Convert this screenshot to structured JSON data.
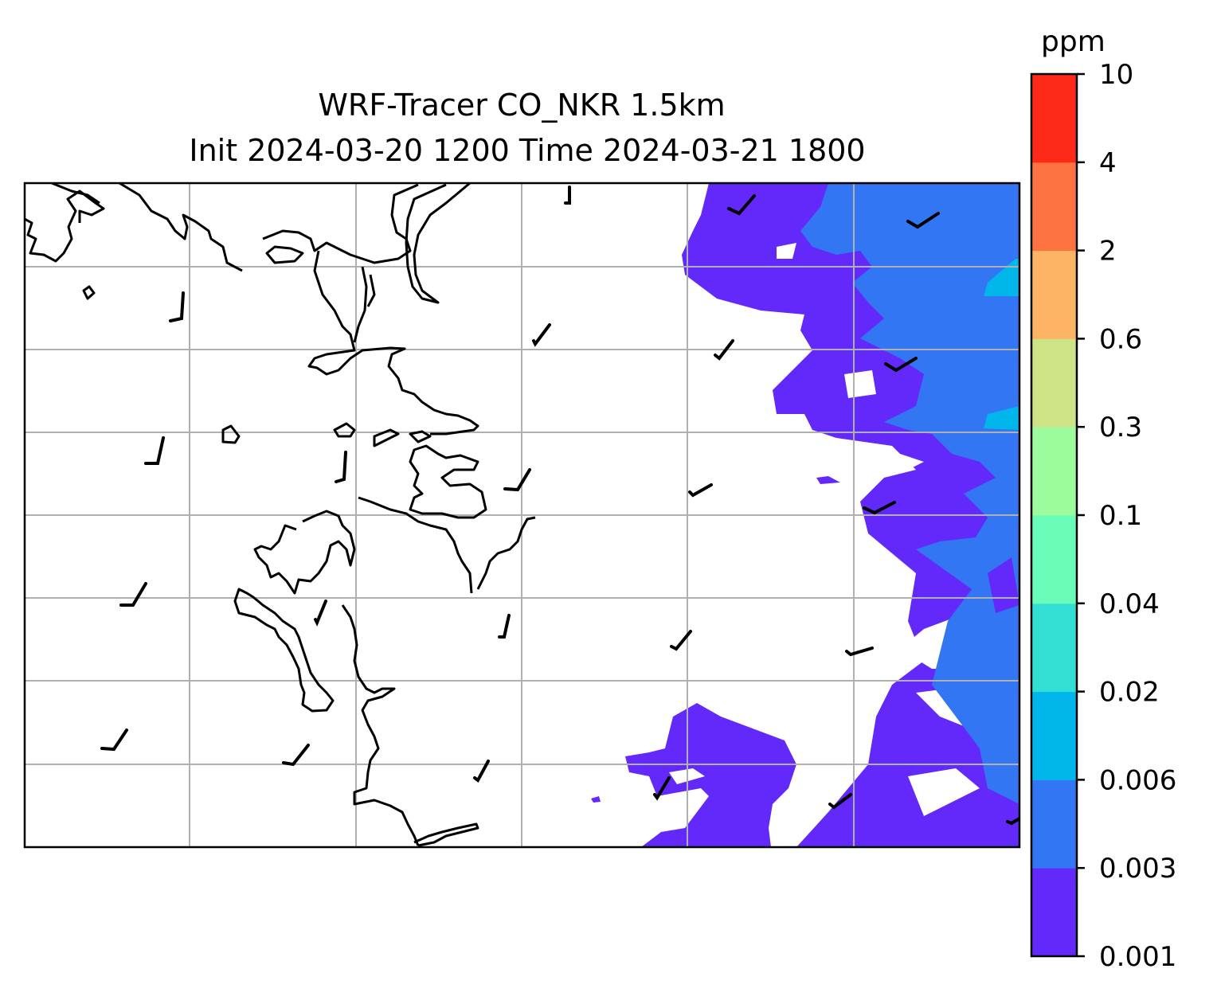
{
  "title": {
    "line1": "WRF-Tracer CO_NKR 1.5km",
    "line2": "Init 2024-03-20 1200 Time 2024-03-21 1800"
  },
  "colorbar": {
    "unit": "ppm",
    "levels": [
      "0.001",
      "0.003",
      "0.006",
      "0.02",
      "0.04",
      "0.1",
      "0.3",
      "0.6",
      "2",
      "4",
      "10"
    ],
    "colors": [
      "#6229fa",
      "#3376f3",
      "#00b6eb",
      "#32dfd4",
      "#69fcb8",
      "#9cfb9c",
      "#cee385",
      "#fdb565",
      "#fd7241",
      "#fd2919"
    ]
  },
  "map": {
    "coastline_color": "#000000",
    "grid_color": "#b0b0b0",
    "tracer_field": {
      "field": "CO_NKR",
      "region_east_band": "0.001-0.003 ppm",
      "region_east_edge": "0.003-0.006 ppm",
      "region_spots": "0.006-0.02 ppm",
      "region_south": "0.001-0.003 ppm"
    },
    "wind_barbs": "present"
  }
}
